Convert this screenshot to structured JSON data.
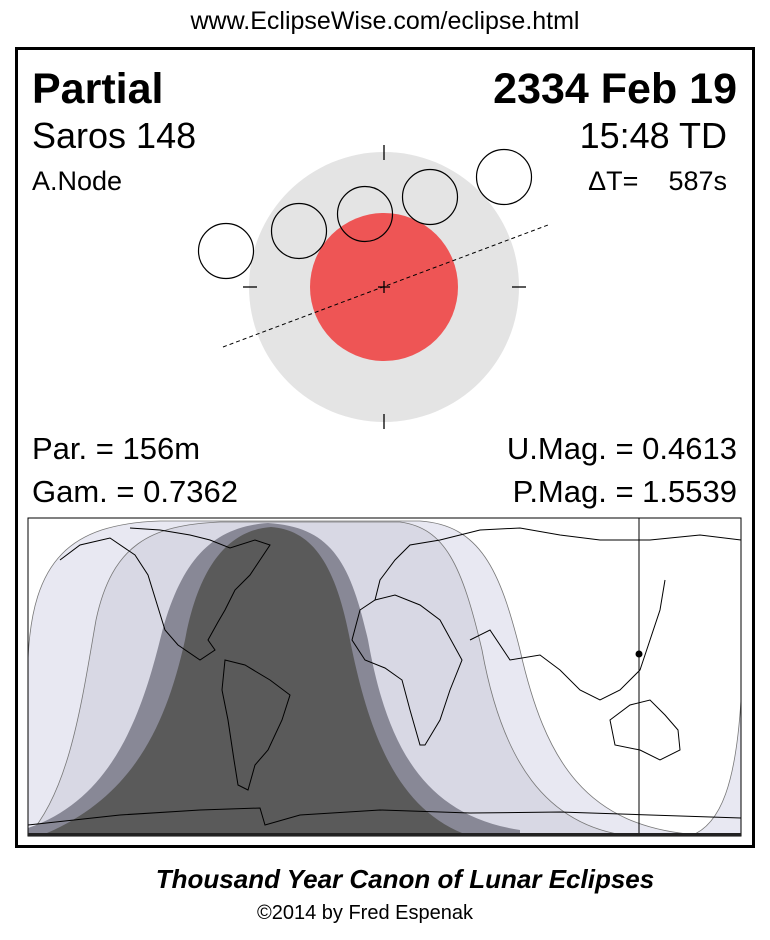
{
  "header": {
    "url": "www.EclipseWise.com/eclipse.html"
  },
  "eclipse": {
    "type": "Partial",
    "date": "2334 Feb 19",
    "saros": "Saros 148",
    "time": "15:48 TD",
    "node": "A.Node",
    "delta_t_label": "ΔT=",
    "delta_t_value": "587s",
    "partial_duration": "Par. = 156m",
    "gamma": "Gam. = 0.7362",
    "umbral_magnitude": "U.Mag. = 0.4613",
    "penumbral_magnitude": "P.Mag. = 1.5539"
  },
  "colors": {
    "penumbra": "#e4e4e4",
    "umbra": "#ee5555",
    "map_umbral": "#5a5a5a",
    "map_penumbral_dark": "#888896",
    "map_penumbral_mid": "#d8d8e4",
    "map_penumbral_light": "#e8e8f2"
  },
  "footer": {
    "canon": "Thousand Year Canon of Lunar Eclipses",
    "copyright": "©2014 by Fred Espenak"
  }
}
